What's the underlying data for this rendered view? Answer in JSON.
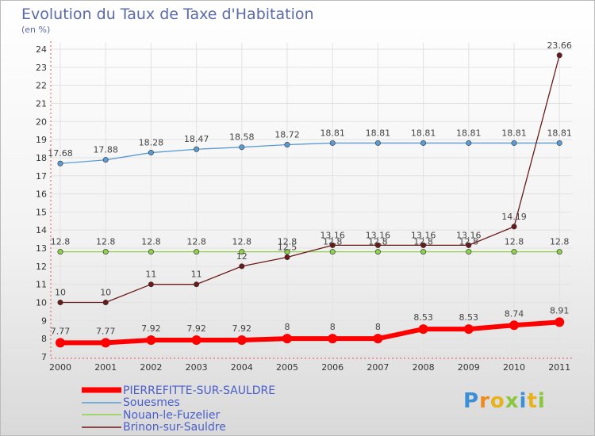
{
  "chart_data": {
    "type": "line",
    "title": "Evolution du Taux de Taxe d'Habitation",
    "subtitle": "(en %)",
    "categories": [
      "2000",
      "2001",
      "2002",
      "2003",
      "2004",
      "2005",
      "2006",
      "2007",
      "2008",
      "2009",
      "2010",
      "2011"
    ],
    "ylim": [
      7,
      24
    ],
    "yticks": [
      7,
      8,
      9,
      10,
      11,
      12,
      13,
      14,
      15,
      16,
      17,
      18,
      19,
      20,
      21,
      22,
      23,
      24
    ],
    "series": [
      {
        "name": "Souesmes",
        "color": "#5b9bd5",
        "values": [
          17.68,
          17.88,
          18.28,
          18.47,
          18.58,
          18.72,
          18.81,
          18.81,
          18.81,
          18.81,
          18.81,
          18.81
        ],
        "labels": [
          "17.68",
          "17.88",
          "18.28",
          "18.47",
          "18.58",
          "18.72",
          "18.81",
          "18.81",
          "18.81",
          "18.81",
          "18.81",
          "18.81"
        ]
      },
      {
        "name": "Nouan-le-Fuzelier",
        "color": "#8ed14a",
        "values": [
          12.8,
          12.8,
          12.8,
          12.8,
          12.8,
          12.8,
          12.8,
          12.8,
          12.8,
          12.8,
          12.8,
          12.8
        ],
        "labels": [
          "12.8",
          "12.8",
          "12.8",
          "12.8",
          "12.8",
          "12.8",
          "12.8",
          "12.8",
          "12.8",
          "12.8",
          "12.8",
          "12.8"
        ]
      },
      {
        "name": "Brinon-sur-Sauldre",
        "color": "#6b1a1a",
        "values": [
          10,
          10,
          11,
          11,
          12,
          12.5,
          13.16,
          13.16,
          13.16,
          13.16,
          14.19,
          23.66
        ],
        "labels": [
          "10",
          "10",
          "11",
          "11",
          "12",
          "12.5",
          "13.16",
          "13.16",
          "13.16",
          "13.16",
          "14.19",
          "23.66"
        ]
      },
      {
        "name": "PIERREFITTE-SUR-SAULDRE",
        "color": "#ff0000",
        "values": [
          7.77,
          7.77,
          7.92,
          7.92,
          7.92,
          8,
          8,
          8,
          8.53,
          8.53,
          8.74,
          8.91
        ],
        "labels": [
          "7.77",
          "7.77",
          "7.92",
          "7.92",
          "7.92",
          "8",
          "8",
          "8",
          "8.53",
          "8.53",
          "8.74",
          "8.91"
        ]
      }
    ],
    "legend": [
      "PIERREFITTE-SUR-SAULDRE",
      "Souesmes",
      "Nouan-le-Fuzelier",
      "Brinon-sur-Sauldre"
    ],
    "legend_position": "bottom-left"
  },
  "logo": {
    "text": "Proxiti"
  }
}
